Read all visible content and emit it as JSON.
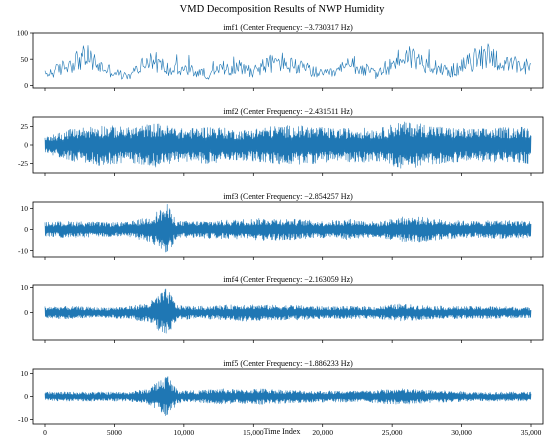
{
  "chart_data": {
    "type": "line",
    "title": "VMD Decomposition Results of NWP Humidity",
    "xlabel": "Time Index",
    "x_range": [
      0,
      35000
    ],
    "x_ticks": [
      0,
      5000,
      10000,
      15000,
      20000,
      25000,
      30000,
      35000
    ],
    "x_tick_labels": [
      "0",
      "5000",
      "10,000",
      "15,000",
      "20,000",
      "25,000",
      "30,000",
      "35,000"
    ],
    "shared_x": true,
    "grid": false,
    "color": "#1f77b4",
    "panels": [
      {
        "name": "imf1",
        "title": "imf1 (Center Frequency: −3.730317 Hz)",
        "ylim": [
          -5,
          100
        ],
        "yticks": [
          0,
          50,
          100
        ],
        "profile": "level",
        "segments": [
          [
            0,
            20
          ],
          [
            1000,
            30
          ],
          [
            2000,
            45
          ],
          [
            3000,
            55
          ],
          [
            4000,
            35
          ],
          [
            5000,
            25
          ],
          [
            6000,
            15
          ],
          [
            7000,
            40
          ],
          [
            8000,
            45
          ],
          [
            9000,
            28
          ],
          [
            10000,
            30
          ],
          [
            11000,
            25
          ],
          [
            12000,
            20
          ],
          [
            13000,
            35
          ],
          [
            14000,
            35
          ],
          [
            15000,
            28
          ],
          [
            16000,
            40
          ],
          [
            17000,
            45
          ],
          [
            18000,
            35
          ],
          [
            19000,
            30
          ],
          [
            20000,
            20
          ],
          [
            21000,
            25
          ],
          [
            22000,
            40
          ],
          [
            23000,
            30
          ],
          [
            24000,
            20
          ],
          [
            25000,
            40
          ],
          [
            26000,
            60
          ],
          [
            27000,
            45
          ],
          [
            28000,
            40
          ],
          [
            29000,
            25
          ],
          [
            30000,
            35
          ],
          [
            31000,
            50
          ],
          [
            32000,
            60
          ],
          [
            33000,
            40
          ],
          [
            34000,
            35
          ],
          [
            35000,
            30
          ]
        ]
      },
      {
        "name": "imf2",
        "title": "imf2 (Center Frequency: −2.431511 Hz)",
        "ylim": [
          -38,
          38
        ],
        "yticks": [
          -25,
          0,
          25
        ],
        "profile": "oscillation",
        "segments": [
          [
            0,
            12
          ],
          [
            2000,
            22
          ],
          [
            4000,
            28
          ],
          [
            6000,
            24
          ],
          [
            8000,
            30
          ],
          [
            10000,
            22
          ],
          [
            12000,
            26
          ],
          [
            14000,
            20
          ],
          [
            15500,
            24
          ],
          [
            17000,
            27
          ],
          [
            19000,
            26
          ],
          [
            21000,
            22
          ],
          [
            22500,
            24
          ],
          [
            24000,
            22
          ],
          [
            25500,
            32
          ],
          [
            27000,
            30
          ],
          [
            29000,
            24
          ],
          [
            31000,
            22
          ],
          [
            33000,
            24
          ],
          [
            35000,
            26
          ]
        ]
      },
      {
        "name": "imf3",
        "title": "imf3 (Center Frequency: −2.854257 Hz)",
        "ylim": [
          -13,
          13
        ],
        "yticks": [
          -10,
          0,
          10
        ],
        "profile": "oscillation",
        "segments": [
          [
            0,
            3.5
          ],
          [
            2000,
            4
          ],
          [
            4000,
            3.5
          ],
          [
            6000,
            3.5
          ],
          [
            7500,
            6
          ],
          [
            8800,
            12
          ],
          [
            9500,
            4
          ],
          [
            11000,
            4
          ],
          [
            13000,
            4.5
          ],
          [
            14500,
            5
          ],
          [
            16000,
            5.5
          ],
          [
            18000,
            5
          ],
          [
            20000,
            4
          ],
          [
            22000,
            5
          ],
          [
            24000,
            3.5
          ],
          [
            25500,
            6
          ],
          [
            27000,
            6
          ],
          [
            29000,
            4.5
          ],
          [
            31000,
            4
          ],
          [
            33000,
            4.5
          ],
          [
            35000,
            4
          ]
        ]
      },
      {
        "name": "imf4",
        "title": "imf4 (Center Frequency: −2.163059 Hz)",
        "ylim": [
          -11,
          11
        ],
        "yticks": [
          0,
          10
        ],
        "profile": "oscillation",
        "segments": [
          [
            0,
            2.5
          ],
          [
            2000,
            2.5
          ],
          [
            4000,
            2
          ],
          [
            6000,
            2.5
          ],
          [
            7500,
            4
          ],
          [
            8800,
            10
          ],
          [
            9500,
            3
          ],
          [
            11000,
            2.5
          ],
          [
            13000,
            3
          ],
          [
            14500,
            3.5
          ],
          [
            16000,
            3
          ],
          [
            18000,
            3
          ],
          [
            20000,
            2.5
          ],
          [
            22000,
            2.5
          ],
          [
            24000,
            2.5
          ],
          [
            25500,
            3.5
          ],
          [
            27000,
            3
          ],
          [
            29000,
            2.5
          ],
          [
            31000,
            2.5
          ],
          [
            33000,
            2.5
          ],
          [
            35000,
            2
          ]
        ]
      },
      {
        "name": "imf5",
        "title": "imf5 (Center Frequency: −1.886233 Hz)",
        "ylim": [
          -12,
          12
        ],
        "yticks": [
          -10,
          0,
          10
        ],
        "profile": "oscillation",
        "segments": [
          [
            0,
            2
          ],
          [
            2000,
            2
          ],
          [
            4000,
            2
          ],
          [
            6000,
            2
          ],
          [
            7500,
            3.5
          ],
          [
            8800,
            10
          ],
          [
            9500,
            3
          ],
          [
            11000,
            2.5
          ],
          [
            12500,
            3.5
          ],
          [
            14000,
            3
          ],
          [
            15500,
            3.5
          ],
          [
            17000,
            3
          ],
          [
            19000,
            2.5
          ],
          [
            21000,
            2.5
          ],
          [
            23000,
            2.5
          ],
          [
            25500,
            3.5
          ],
          [
            27000,
            3
          ],
          [
            29000,
            2.5
          ],
          [
            31000,
            2
          ],
          [
            33000,
            2
          ],
          [
            35000,
            2
          ]
        ]
      }
    ]
  }
}
